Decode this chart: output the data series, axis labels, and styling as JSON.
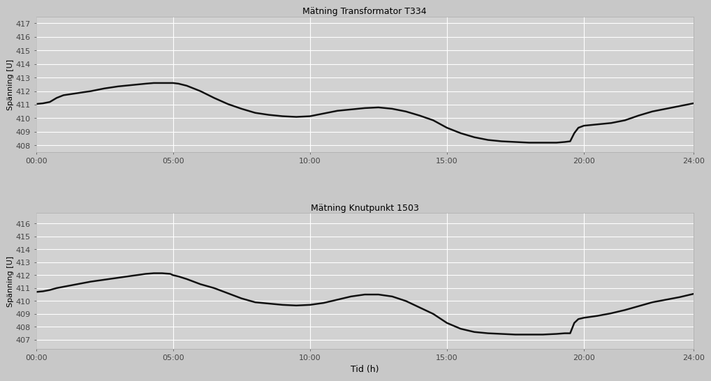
{
  "title1": "Mätning Transformator T334",
  "title2": "Mätning Knutpunkt 1503",
  "xlabel": "Tid (h)",
  "ylabel": "Spänning [U]",
  "bg_color": "#c8c8c8",
  "line_color": "#111111",
  "grid_color": "#ffffff",
  "plot_bg": "#d2d2d2",
  "ylim1": [
    407.5,
    417.5
  ],
  "ylim2": [
    406.3,
    416.8
  ],
  "yticks1": [
    408,
    409,
    410,
    411,
    412,
    413,
    414,
    415,
    416,
    417
  ],
  "yticks2": [
    407,
    408,
    409,
    410,
    411,
    412,
    413,
    414,
    415,
    416
  ],
  "xticks": [
    0,
    5,
    10,
    15,
    20,
    24
  ],
  "xticklabels": [
    "00:00",
    "05:00",
    "10:00",
    "15:00",
    "20:00",
    "24:00"
  ],
  "t1_x": [
    0,
    0.25,
    0.5,
    0.75,
    1.0,
    1.5,
    2.0,
    2.5,
    3.0,
    3.5,
    4.0,
    4.3,
    4.6,
    4.9,
    5.0,
    5.2,
    5.5,
    6.0,
    6.5,
    7.0,
    7.5,
    8.0,
    8.5,
    9.0,
    9.5,
    10.0,
    10.5,
    11.0,
    11.5,
    12.0,
    12.5,
    13.0,
    13.5,
    14.0,
    14.5,
    15.0,
    15.5,
    16.0,
    16.5,
    17.0,
    17.5,
    18.0,
    18.5,
    19.0,
    19.3,
    19.5,
    19.65,
    19.8,
    20.0,
    20.5,
    21.0,
    21.5,
    22.0,
    22.5,
    23.0,
    23.5,
    24.0
  ],
  "t1_y": [
    411.05,
    411.1,
    411.2,
    411.5,
    411.7,
    411.85,
    412.0,
    412.2,
    412.35,
    412.45,
    412.55,
    412.6,
    412.6,
    412.6,
    412.6,
    412.55,
    412.4,
    412.0,
    411.5,
    411.05,
    410.7,
    410.4,
    410.25,
    410.15,
    410.1,
    410.15,
    410.35,
    410.55,
    410.65,
    410.75,
    410.8,
    410.7,
    410.5,
    410.2,
    409.85,
    409.3,
    408.9,
    408.6,
    408.4,
    408.3,
    408.25,
    408.2,
    408.2,
    408.2,
    408.25,
    408.3,
    408.9,
    409.3,
    409.45,
    409.55,
    409.65,
    409.85,
    410.2,
    410.5,
    410.7,
    410.9,
    411.1
  ],
  "t2_x": [
    0,
    0.25,
    0.5,
    0.75,
    1.0,
    1.5,
    2.0,
    2.5,
    3.0,
    3.5,
    4.0,
    4.3,
    4.6,
    4.9,
    5.0,
    5.2,
    5.5,
    6.0,
    6.5,
    7.0,
    7.5,
    8.0,
    8.5,
    9.0,
    9.5,
    10.0,
    10.5,
    11.0,
    11.5,
    12.0,
    12.5,
    13.0,
    13.5,
    14.0,
    14.5,
    15.0,
    15.5,
    16.0,
    16.5,
    17.0,
    17.5,
    18.0,
    18.5,
    19.0,
    19.3,
    19.5,
    19.65,
    19.8,
    20.0,
    20.5,
    21.0,
    21.5,
    22.0,
    22.5,
    23.0,
    23.5,
    24.0
  ],
  "t2_y": [
    410.7,
    410.75,
    410.85,
    411.0,
    411.1,
    411.3,
    411.5,
    411.65,
    411.8,
    411.95,
    412.1,
    412.15,
    412.15,
    412.1,
    412.0,
    411.9,
    411.7,
    411.3,
    411.0,
    410.6,
    410.2,
    409.9,
    409.8,
    409.7,
    409.65,
    409.7,
    409.85,
    410.1,
    410.35,
    410.5,
    410.5,
    410.35,
    410.0,
    409.5,
    409.0,
    408.3,
    407.85,
    407.6,
    407.5,
    407.45,
    407.4,
    407.4,
    407.4,
    407.45,
    407.5,
    407.5,
    408.3,
    408.6,
    408.7,
    408.85,
    409.05,
    409.3,
    409.6,
    409.9,
    410.1,
    410.3,
    410.55
  ]
}
